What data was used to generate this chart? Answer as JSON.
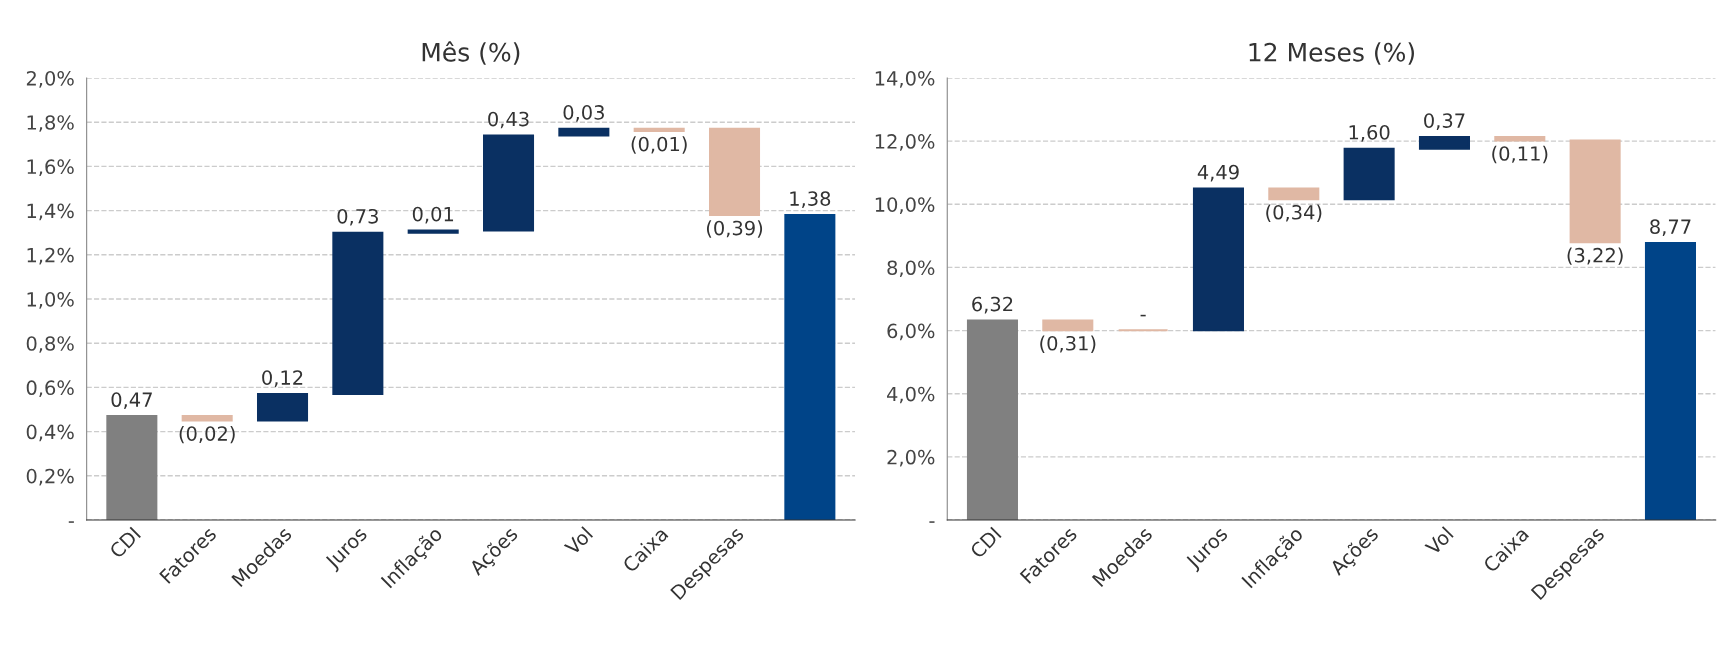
{
  "chart_data": [
    {
      "type": "bar",
      "title": "Mês (%)",
      "categories": [
        "CDI",
        "Fatores",
        "Moedas",
        "Juros",
        "Inflação",
        "Ações",
        "Vol",
        "Caixa",
        "Despesas",
        null
      ],
      "values": [
        0.47,
        -0.02,
        0.12,
        0.73,
        0.01,
        0.43,
        0.03,
        -0.01,
        -0.39,
        1.38
      ],
      "base": [
        0,
        0.47,
        0.45,
        0.57,
        1.3,
        1.31,
        1.74,
        1.77,
        1.77,
        0
      ],
      "colors": [
        "#808080",
        "#e0b8a4",
        "#0a3062",
        "#0a3062",
        "#0a3062",
        "#0a3062",
        "#0a3062",
        "#e0b8a4",
        "#e0b8a4",
        "#004488"
      ],
      "value_labels": [
        "0,47",
        "(0,02)",
        "0,12",
        "0,73",
        "0,01",
        "0,43",
        "0,03",
        "(0,01)",
        "(0,39)",
        "1,38"
      ],
      "ylim": [
        0,
        2.0
      ],
      "yticks": [
        {
          "value": 0,
          "label": "-"
        },
        {
          "value": 0.2,
          "label": "0,2%"
        },
        {
          "value": 0.4,
          "label": "0,4%"
        },
        {
          "value": 0.6,
          "label": "0,6%"
        },
        {
          "value": 0.8,
          "label": "0,8%"
        },
        {
          "value": 1.0,
          "label": "1,0%"
        },
        {
          "value": 1.2,
          "label": "1,2%"
        },
        {
          "value": 1.4,
          "label": "1,4%"
        },
        {
          "value": 1.6,
          "label": "1,6%"
        },
        {
          "value": 1.8,
          "label": "1,8%"
        },
        {
          "value": 2.0,
          "label": "2,0%"
        }
      ],
      "grid": "y"
    },
    {
      "type": "bar",
      "title": "12 Meses (%)",
      "categories": [
        "CDI",
        "Fatores",
        "Moedas",
        "Juros",
        "Inflação",
        "Ações",
        "Vol",
        "Caixa",
        "Despesas",
        null
      ],
      "values": [
        6.32,
        -0.31,
        0,
        4.49,
        -0.34,
        1.6,
        0.37,
        -0.11,
        -3.22,
        8.77
      ],
      "base": [
        0,
        6.32,
        6.01,
        6.01,
        10.5,
        10.16,
        11.76,
        12.13,
        12.02,
        0
      ],
      "colors": [
        "#808080",
        "#e0b8a4",
        "#e0b8a4",
        "#0a3062",
        "#e0b8a4",
        "#0a3062",
        "#0a3062",
        "#e0b8a4",
        "#e0b8a4",
        "#004488"
      ],
      "value_labels": [
        "6,32",
        "(0,31)",
        "-",
        "4,49",
        "(0,34)",
        "1,60",
        "0,37",
        "(0,11)",
        "(3,22)",
        "8,77"
      ],
      "ylim": [
        0,
        14.0
      ],
      "yticks": [
        {
          "value": 0,
          "label": "-"
        },
        {
          "value": 2.0,
          "label": "2,0%"
        },
        {
          "value": 4.0,
          "label": "4,0%"
        },
        {
          "value": 6.0,
          "label": "6,0%"
        },
        {
          "value": 8.0,
          "label": "8,0%"
        },
        {
          "value": 10.0,
          "label": "10,0%"
        },
        {
          "value": 12.0,
          "label": "12,0%"
        },
        {
          "value": 14.0,
          "label": "14,0%"
        }
      ],
      "grid": "y"
    }
  ]
}
